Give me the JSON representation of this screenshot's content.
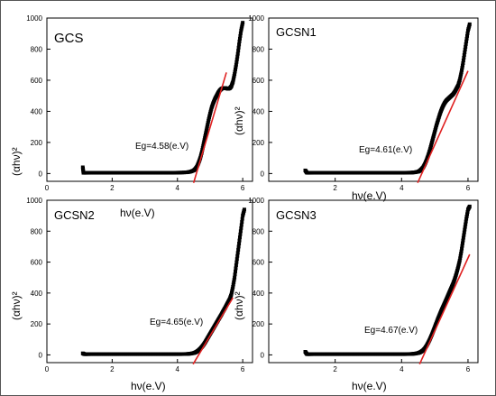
{
  "chart_data": [
    {
      "type": "scatter",
      "title": "GCS",
      "xlabel": "",
      "ylabel": "(αhν)²",
      "xlim": [
        0,
        6.3
      ],
      "ylim": [
        -50,
        1000
      ],
      "xticks": [
        "0",
        "2",
        "4",
        "6"
      ],
      "yticks": [
        "0",
        "200",
        "400",
        "600",
        "800",
        "1000"
      ],
      "annotation": "Eg=4.58(e.V)",
      "eg": 4.58,
      "fit_line": {
        "x": [
          4.58,
          5.5
        ],
        "y": [
          0,
          650
        ]
      },
      "x": [
        1.1,
        1.12,
        1.15,
        1.2,
        1.3,
        1.5,
        1.7,
        1.9,
        2.1,
        2.3,
        2.5,
        2.7,
        2.9,
        3.1,
        3.3,
        3.5,
        3.7,
        3.9,
        4.1,
        4.3,
        4.4,
        4.5,
        4.55,
        4.6,
        4.65,
        4.7,
        4.75,
        4.8,
        4.85,
        4.9,
        4.95,
        5.0,
        5.05,
        5.1,
        5.15,
        5.2,
        5.25,
        5.3,
        5.35,
        5.4,
        5.45,
        5.5,
        5.55,
        5.6,
        5.65,
        5.7,
        5.75,
        5.8,
        5.85,
        5.9,
        5.95,
        6.0
      ],
      "values": [
        40,
        5,
        5,
        5,
        5,
        5,
        5,
        5,
        5,
        5,
        5,
        5,
        5,
        5,
        5,
        5,
        5,
        5,
        6,
        8,
        12,
        20,
        30,
        45,
        70,
        100,
        140,
        190,
        240,
        290,
        340,
        385,
        425,
        455,
        480,
        500,
        520,
        535,
        545,
        550,
        550,
        548,
        545,
        548,
        560,
        590,
        640,
        700,
        770,
        850,
        920,
        970
      ]
    },
    {
      "type": "scatter",
      "title": "GCSN1",
      "xlabel": "hν(e.V)",
      "ylabel": "(αhν)²",
      "xlim": [
        0,
        6.3
      ],
      "ylim": [
        -50,
        1000
      ],
      "xticks": [
        "2",
        "4",
        "6"
      ],
      "yticks": [
        "0",
        "200",
        "400",
        "600",
        "800",
        "1000"
      ],
      "annotation": "Eg=4.61(e.V)",
      "eg": 4.61,
      "fit_line": {
        "x": [
          4.61,
          6.0
        ],
        "y": [
          0,
          660
        ]
      },
      "x": [
        1.1,
        1.15,
        1.2,
        1.3,
        1.5,
        1.7,
        1.9,
        2.1,
        2.3,
        2.5,
        2.7,
        2.9,
        3.1,
        3.3,
        3.5,
        3.7,
        3.9,
        4.1,
        4.3,
        4.4,
        4.5,
        4.55,
        4.6,
        4.65,
        4.7,
        4.75,
        4.8,
        4.85,
        4.9,
        4.95,
        5.0,
        5.05,
        5.1,
        5.15,
        5.2,
        5.25,
        5.3,
        5.35,
        5.4,
        5.45,
        5.5,
        5.55,
        5.6,
        5.65,
        5.7,
        5.75,
        5.8,
        5.85,
        5.9,
        5.95,
        6.0,
        6.05
      ],
      "values": [
        20,
        5,
        5,
        5,
        5,
        5,
        5,
        5,
        5,
        5,
        5,
        5,
        5,
        5,
        5,
        5,
        5,
        5,
        6,
        8,
        12,
        18,
        28,
        40,
        60,
        85,
        115,
        150,
        190,
        230,
        270,
        310,
        345,
        380,
        410,
        435,
        455,
        470,
        480,
        490,
        500,
        510,
        525,
        545,
        565,
        600,
        650,
        710,
        780,
        850,
        920,
        960
      ]
    },
    {
      "type": "scatter",
      "title": "GCSN2",
      "xlabel": "hν(e.V)",
      "ylabel": "(αhν)²",
      "xlim": [
        0,
        6.3
      ],
      "ylim": [
        -50,
        1000
      ],
      "xticks": [
        "0",
        "2",
        "4",
        "6"
      ],
      "yticks": [
        "0",
        "200",
        "400",
        "600",
        "800",
        "1000"
      ],
      "annotation": "Eg=4.65(e.V)",
      "eg": 4.65,
      "fit_line": {
        "x": [
          4.65,
          5.7
        ],
        "y": [
          0,
          370
        ]
      },
      "x": [
        1.1,
        1.15,
        1.2,
        1.3,
        1.5,
        1.7,
        1.9,
        2.1,
        2.3,
        2.5,
        2.7,
        2.9,
        3.1,
        3.3,
        3.5,
        3.7,
        3.9,
        4.1,
        4.3,
        4.4,
        4.5,
        4.55,
        4.6,
        4.65,
        4.7,
        4.75,
        4.8,
        4.85,
        4.9,
        4.95,
        5.0,
        5.05,
        5.1,
        5.15,
        5.2,
        5.25,
        5.3,
        5.35,
        5.4,
        5.45,
        5.5,
        5.55,
        5.6,
        5.65,
        5.7,
        5.75,
        5.8,
        5.85,
        5.9,
        5.95,
        6.0,
        6.05
      ],
      "values": [
        10,
        5,
        5,
        5,
        5,
        5,
        5,
        5,
        5,
        5,
        5,
        5,
        5,
        5,
        5,
        5,
        5,
        5,
        6,
        8,
        12,
        16,
        22,
        30,
        40,
        52,
        66,
        82,
        100,
        118,
        136,
        154,
        172,
        190,
        208,
        226,
        244,
        262,
        282,
        300,
        320,
        340,
        360,
        390,
        440,
        500,
        580,
        660,
        740,
        820,
        900,
        940
      ]
    },
    {
      "type": "scatter",
      "title": "GCSN3",
      "xlabel": "hν(e.V)",
      "ylabel": "(αhν)²",
      "xlim": [
        0,
        6.3
      ],
      "ylim": [
        -50,
        1000
      ],
      "xticks": [
        "2",
        "4",
        "6"
      ],
      "yticks": [
        "0",
        "200",
        "400",
        "600",
        "800",
        "1000"
      ],
      "annotation": "Eg=4.67(e.V)",
      "eg": 4.67,
      "fit_line": {
        "x": [
          4.67,
          6.05
        ],
        "y": [
          0,
          650
        ]
      },
      "x": [
        1.1,
        1.15,
        1.2,
        1.3,
        1.5,
        1.7,
        1.9,
        2.1,
        2.3,
        2.5,
        2.7,
        2.9,
        3.1,
        3.3,
        3.5,
        3.7,
        3.9,
        4.1,
        4.3,
        4.4,
        4.5,
        4.55,
        4.6,
        4.65,
        4.7,
        4.75,
        4.8,
        4.85,
        4.9,
        4.95,
        5.0,
        5.05,
        5.1,
        5.15,
        5.2,
        5.25,
        5.3,
        5.35,
        5.4,
        5.45,
        5.5,
        5.55,
        5.6,
        5.65,
        5.7,
        5.75,
        5.8,
        5.85,
        5.9,
        5.95,
        6.0,
        6.05
      ],
      "values": [
        20,
        5,
        5,
        5,
        5,
        5,
        5,
        5,
        5,
        5,
        5,
        5,
        5,
        5,
        5,
        5,
        5,
        5,
        6,
        8,
        12,
        16,
        22,
        30,
        42,
        58,
        78,
        100,
        125,
        152,
        180,
        208,
        236,
        262,
        288,
        312,
        336,
        360,
        385,
        410,
        435,
        460,
        490,
        525,
        565,
        610,
        670,
        740,
        810,
        880,
        940,
        960
      ]
    }
  ]
}
